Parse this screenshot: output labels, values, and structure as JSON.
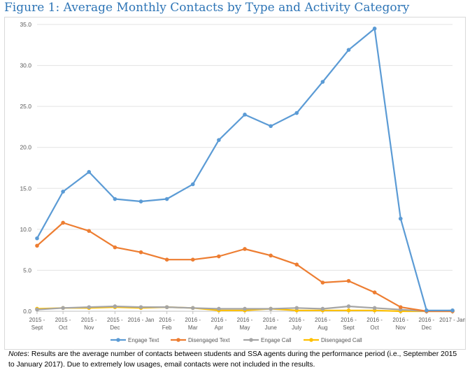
{
  "figure": {
    "title": "Figure 1: Average Monthly Contacts by Type and Activity Category"
  },
  "notes": {
    "label": "Notes",
    "text": ": Results are the average number of contacts between students and SSA agents during the performance period (i.e., September 2015 to January 2017). Due to extremely low usages, email contacts were not included in the results."
  },
  "chart_data": {
    "type": "line",
    "title": "Figure 1: Average Monthly Contacts by Type and Activity Category",
    "xlabel": "",
    "ylabel": "",
    "ylim": [
      0,
      35
    ],
    "yticks": [
      "0.0",
      "5.0",
      "10.0",
      "15.0",
      "20.0",
      "25.0",
      "30.0",
      "35.0"
    ],
    "grid": true,
    "legend_position": "bottom",
    "categories": [
      [
        "2015 -",
        "Sept"
      ],
      [
        "2015 -",
        "Oct"
      ],
      [
        "2015 -",
        "Nov"
      ],
      [
        "2015 -",
        "Dec"
      ],
      [
        "2016 - Jan",
        ""
      ],
      [
        "2016 -",
        "Feb"
      ],
      [
        "2016 -",
        "Mar"
      ],
      [
        "2016 -",
        "Apr"
      ],
      [
        "2016 -",
        "May"
      ],
      [
        "2016 -",
        "June"
      ],
      [
        "2016 -",
        "July"
      ],
      [
        "2016 -",
        "Aug"
      ],
      [
        "2016 -",
        "Sept"
      ],
      [
        "2016 -",
        "Oct"
      ],
      [
        "2016 -",
        "Nov"
      ],
      [
        "2016 -",
        "Dec"
      ],
      [
        "2017 - Jan",
        ""
      ]
    ],
    "series": [
      {
        "name": "Engage Text",
        "color": "#5b9bd5",
        "values": [
          8.9,
          14.6,
          17.0,
          13.7,
          13.4,
          13.7,
          15.5,
          20.9,
          24.0,
          22.6,
          24.2,
          28.0,
          31.9,
          34.5,
          11.3,
          0.1,
          0.1
        ]
      },
      {
        "name": "Disengaged Text",
        "color": "#ed7d31",
        "values": [
          8.0,
          10.8,
          9.8,
          7.8,
          7.2,
          6.3,
          6.3,
          6.7,
          7.6,
          6.8,
          5.7,
          3.5,
          3.7,
          2.3,
          0.5,
          0.0,
          0.0
        ]
      },
      {
        "name": "Engage Call",
        "color": "#a5a5a5",
        "values": [
          0.2,
          0.4,
          0.5,
          0.6,
          0.5,
          0.5,
          0.4,
          0.3,
          0.3,
          0.3,
          0.4,
          0.3,
          0.6,
          0.4,
          0.2,
          0.0,
          0.1
        ]
      },
      {
        "name": "Disengaged Call",
        "color": "#ffc000",
        "values": [
          0.3,
          0.4,
          0.4,
          0.5,
          0.4,
          0.5,
          0.4,
          0.1,
          0.1,
          0.3,
          0.1,
          0.1,
          0.1,
          0.1,
          0.0,
          0.0,
          0.0
        ]
      }
    ]
  }
}
